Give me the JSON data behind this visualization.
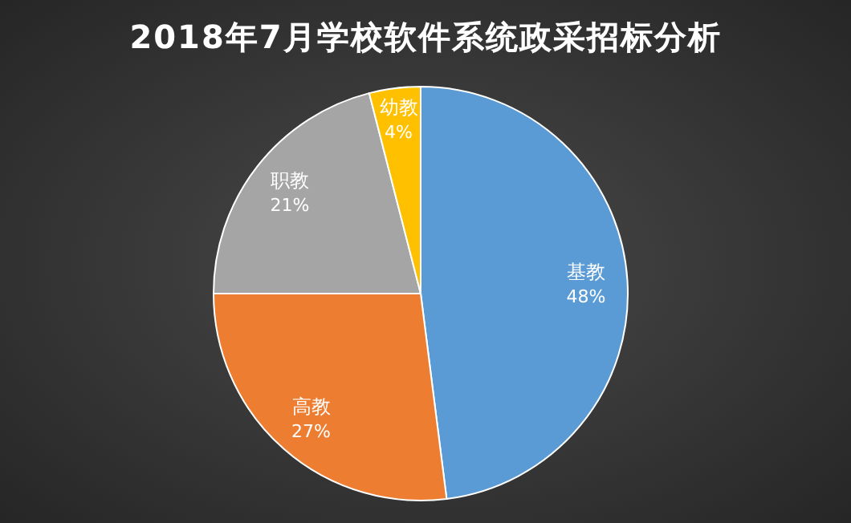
{
  "chart_data": {
    "type": "pie",
    "title": "2018年7月学校软件系统政采招标分析",
    "categories": [
      "基教",
      "高教",
      "职教",
      "幼教"
    ],
    "values": [
      48,
      27,
      21,
      4
    ],
    "colors": [
      "#5b9bd5",
      "#ed7d31",
      "#a5a5a5",
      "#ffc000"
    ],
    "value_labels": [
      "48%",
      "27%",
      "21%",
      "4%"
    ],
    "legend": false
  }
}
